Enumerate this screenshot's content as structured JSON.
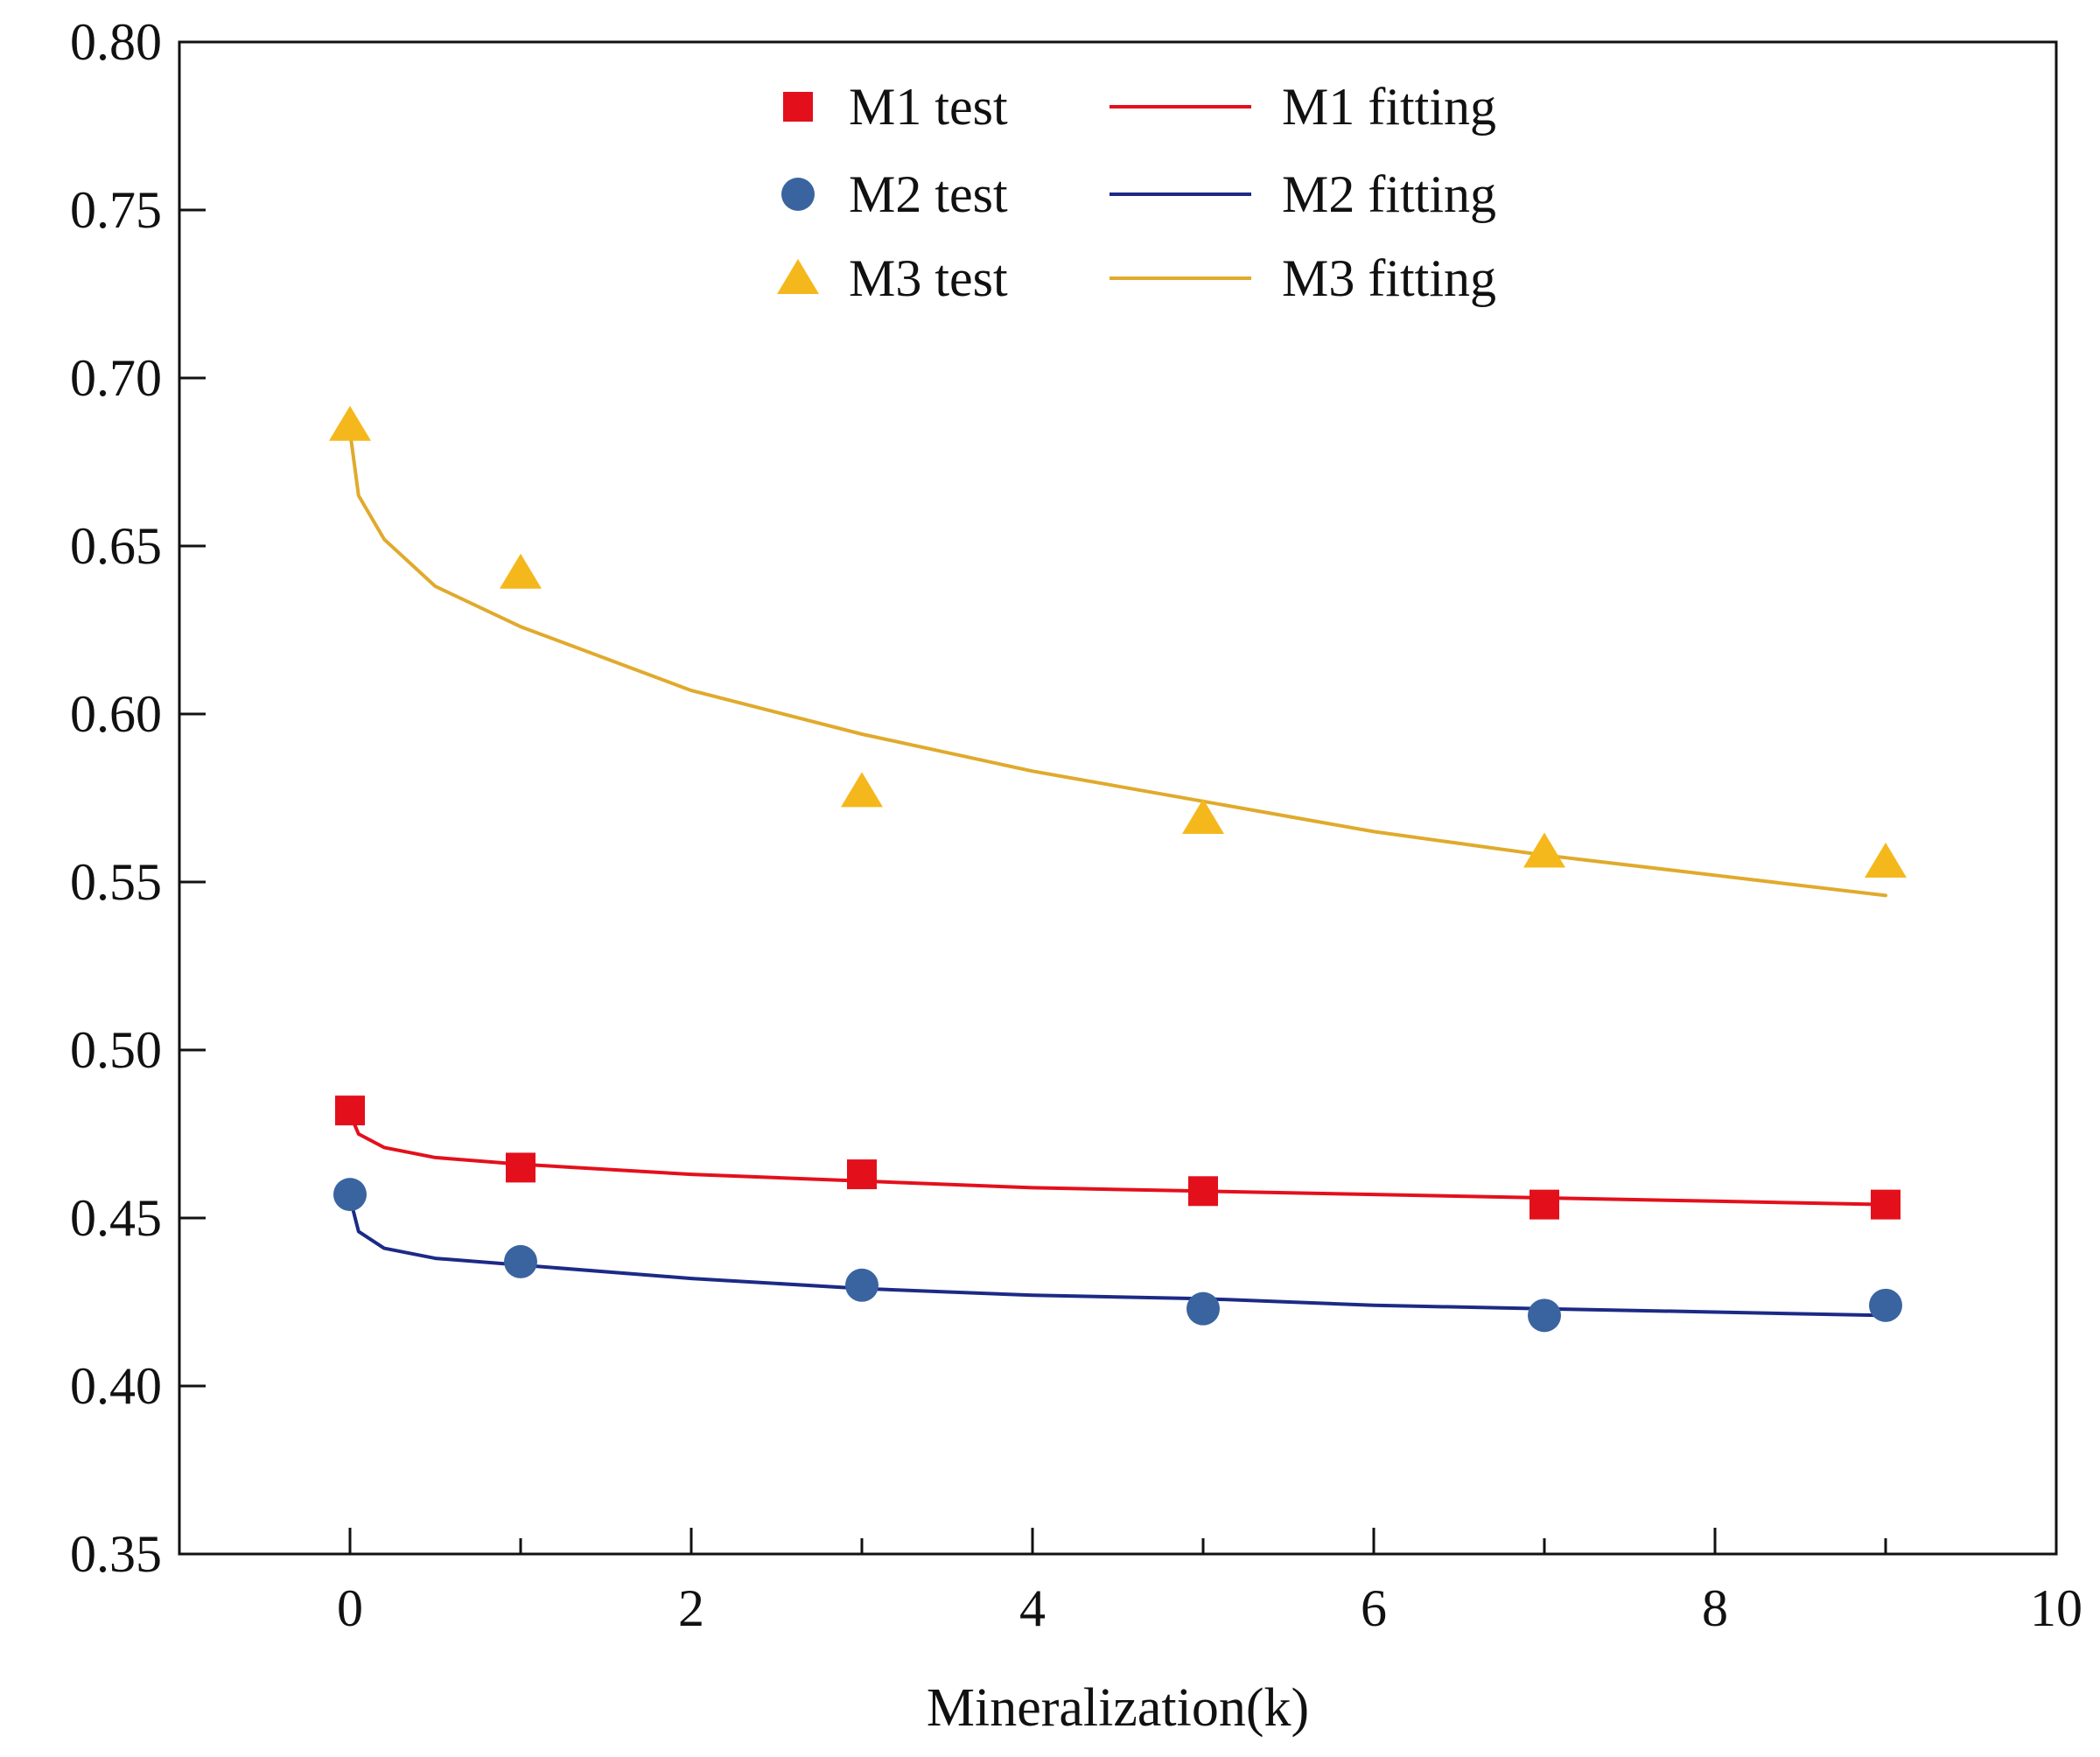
{
  "chart_data": {
    "type": "scatter",
    "title": "",
    "xlabel": "Mineralization(k)",
    "ylabel": "",
    "xlim": [
      -1,
      10
    ],
    "ylim": [
      0.35,
      0.8
    ],
    "grid": false,
    "legend_position": "top-center",
    "xticks": [
      0,
      2,
      4,
      6,
      8,
      10
    ],
    "xtick_labels": [
      "0",
      "2",
      "4",
      "6",
      "8",
      "10"
    ],
    "yticks": [
      0.35,
      0.4,
      0.45,
      0.5,
      0.55,
      0.6,
      0.65,
      0.7,
      0.75,
      0.8
    ],
    "ytick_labels": [
      "0.35",
      "0.40",
      "0.45",
      "0.50",
      "0.55",
      "0.60",
      "0.65",
      "0.70",
      "0.75",
      "0.80"
    ],
    "series": [
      {
        "name": "M1 test",
        "kind": "scatter",
        "marker": "square",
        "color": "#e3101c",
        "x": [
          0,
          1,
          3,
          5,
          7,
          9
        ],
        "y": [
          0.482,
          0.465,
          0.463,
          0.458,
          0.454,
          0.454
        ]
      },
      {
        "name": "M2 test",
        "kind": "scatter",
        "marker": "circle",
        "color": "#3a64a0",
        "x": [
          0,
          1,
          3,
          5,
          7,
          9
        ],
        "y": [
          0.457,
          0.437,
          0.43,
          0.423,
          0.421,
          0.424
        ]
      },
      {
        "name": "M3 test",
        "kind": "scatter",
        "marker": "triangle",
        "color": "#f5b81c",
        "x": [
          0,
          1,
          3,
          5,
          7,
          9
        ],
        "y": [
          0.686,
          0.642,
          0.577,
          0.569,
          0.559,
          0.556
        ]
      },
      {
        "name": "M1 fitting",
        "kind": "line",
        "color": "#e3101c",
        "x": [
          0,
          0.05,
          0.2,
          0.5,
          1,
          2,
          3,
          4,
          5,
          6,
          7,
          8,
          9
        ],
        "y": [
          0.481,
          0.475,
          0.471,
          0.468,
          0.466,
          0.463,
          0.461,
          0.459,
          0.458,
          0.457,
          0.456,
          0.455,
          0.454
        ]
      },
      {
        "name": "M2 fitting",
        "kind": "line",
        "color": "#1c2a86",
        "x": [
          0,
          0.05,
          0.2,
          0.5,
          1,
          2,
          3,
          4,
          5,
          6,
          7,
          8,
          9
        ],
        "y": [
          0.456,
          0.446,
          0.441,
          0.438,
          0.436,
          0.432,
          0.429,
          0.427,
          0.426,
          0.424,
          0.423,
          0.422,
          0.421
        ]
      },
      {
        "name": "M3 fitting",
        "kind": "line",
        "color": "#e0aa2c",
        "x": [
          0,
          0.05,
          0.2,
          0.5,
          1,
          2,
          3,
          4,
          5,
          6,
          7,
          8,
          9
        ],
        "y": [
          0.684,
          0.665,
          0.652,
          0.638,
          0.626,
          0.607,
          0.594,
          0.583,
          0.574,
          0.565,
          0.558,
          0.552,
          0.546
        ]
      }
    ],
    "legend": [
      {
        "series": 0,
        "label": "M1 test"
      },
      {
        "series": 3,
        "label": "M1 fitting"
      },
      {
        "series": 1,
        "label": "M2 test"
      },
      {
        "series": 4,
        "label": "M2 fitting"
      },
      {
        "series": 2,
        "label": "M3 test"
      },
      {
        "series": 5,
        "label": "M3 fitting"
      }
    ]
  }
}
